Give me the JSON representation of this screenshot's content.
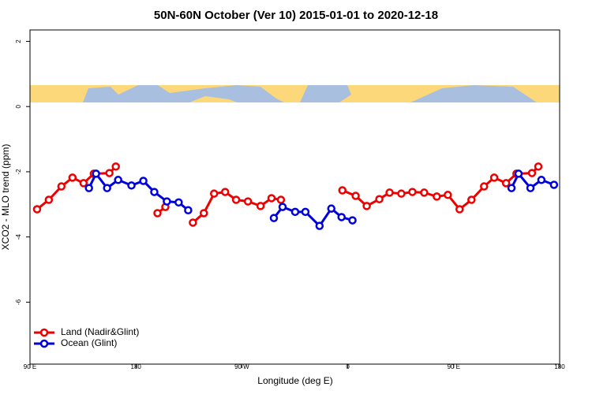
{
  "chart_data": {
    "type": "line",
    "title": "50N-60N October (Ver 10)   2015-01-01 to 2020-12-18",
    "x_label": "Longitude (deg E)",
    "y_label": "XCO2 - MLO trend (ppm)",
    "xlim": [
      90,
      540
    ],
    "xticks": [
      {
        "value": 90,
        "label": "90 E"
      },
      180,
      {
        "value": 270,
        "label": "90 W"
      },
      {
        "value": 360,
        "label": "0"
      },
      {
        "value": 450,
        "label": "90 E"
      },
      {
        "value": 540,
        "label": "180"
      }
    ],
    "ylim": [
      -7.9,
      2.35
    ],
    "yticks": [
      2,
      0,
      -2,
      -4,
      -6
    ],
    "legend": "bottom-left",
    "series": [
      {
        "name": "Land (Nadir&Glint)",
        "color": "#ee0000",
        "x": [
          96,
          106,
          116.7,
          126.1,
          135.5,
          144.2,
          157.5,
          162.9,
          null,
          198.3,
          205,
          null,
          228.4,
          237.7,
          246.4,
          255.8,
          265.1,
          275.2,
          285.9,
          295.2,
          303.2,
          null,
          355.4,
          366.7,
          376.1,
          386.8,
          395.5,
          405.5,
          414.9,
          424.9,
          435.6,
          445,
          455,
          465.1,
          475.8,
          484.4,
          494.5,
          503.3,
          516.5,
          521.9
        ],
        "values": [
          -3.15,
          -2.86,
          -2.45,
          -2.18,
          -2.35,
          -2.06,
          -2.04,
          -1.84,
          null,
          -3.27,
          -3.08,
          null,
          -3.56,
          -3.27,
          -2.67,
          -2.62,
          -2.86,
          -2.91,
          -3.05,
          -2.81,
          -2.86,
          null,
          -2.57,
          -2.74,
          -3.05,
          -2.84,
          -2.64,
          -2.67,
          -2.62,
          -2.64,
          -2.76,
          -2.71,
          -3.15,
          -2.86,
          -2.45,
          -2.18,
          -2.35,
          -2.06,
          -2.04,
          -1.84
        ]
      },
      {
        "name": "Ocean (Glint)",
        "color": "#0000dd",
        "x": [
          140.1,
          146.1,
          155.5,
          164.9,
          176.2,
          186.3,
          195.6,
          206.3,
          216.3,
          224.4,
          null,
          297.2,
          304.6,
          315.3,
          324,
          336,
          346,
          354.7,
          364,
          null,
          499.1,
          505.1,
          515.2,
          524.5,
          535.2
        ],
        "values": [
          -2.5,
          -2.06,
          -2.5,
          -2.25,
          -2.42,
          -2.28,
          -2.62,
          -2.91,
          -2.94,
          -3.18,
          null,
          -3.42,
          -3.08,
          -3.23,
          -3.23,
          -3.66,
          -3.13,
          -3.39,
          -3.49,
          null,
          -2.5,
          -2.06,
          -2.5,
          -2.25,
          -2.4
        ]
      }
    ]
  }
}
